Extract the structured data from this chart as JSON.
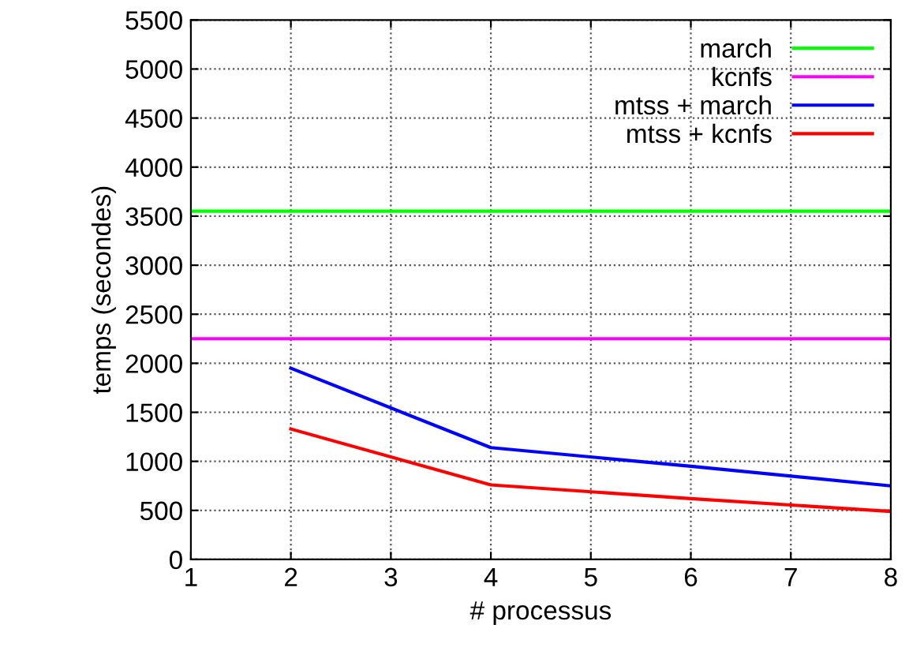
{
  "chart_data": {
    "type": "line",
    "xlabel": "# processus",
    "ylabel": "temps (secondes)",
    "xlim": [
      1,
      8
    ],
    "xticks": [
      1,
      2,
      3,
      4,
      5,
      6,
      7,
      8
    ],
    "ylim": [
      0,
      5500
    ],
    "yticks": [
      0,
      500,
      1000,
      1500,
      2000,
      2500,
      3000,
      3500,
      4000,
      4500,
      5000,
      5500
    ],
    "grid": true,
    "legend": "top right",
    "line_style": "solid",
    "marker": "none",
    "series": [
      {
        "name": "march",
        "color": "#00ff00",
        "x": [
          1,
          8
        ],
        "values": [
          3550,
          3550
        ]
      },
      {
        "name": "kcnfs",
        "color": "#ff00ff",
        "x": [
          1,
          8
        ],
        "values": [
          2250,
          2250
        ]
      },
      {
        "name": "mtss + march",
        "color": "#0000ff",
        "x": [
          2,
          4,
          6,
          8
        ],
        "values": [
          1950,
          1140,
          950,
          750
        ]
      },
      {
        "name": "mtss + kcnfs",
        "color": "#ff0000",
        "x": [
          2,
          4,
          6,
          8
        ],
        "values": [
          1330,
          760,
          620,
          490
        ]
      }
    ]
  }
}
